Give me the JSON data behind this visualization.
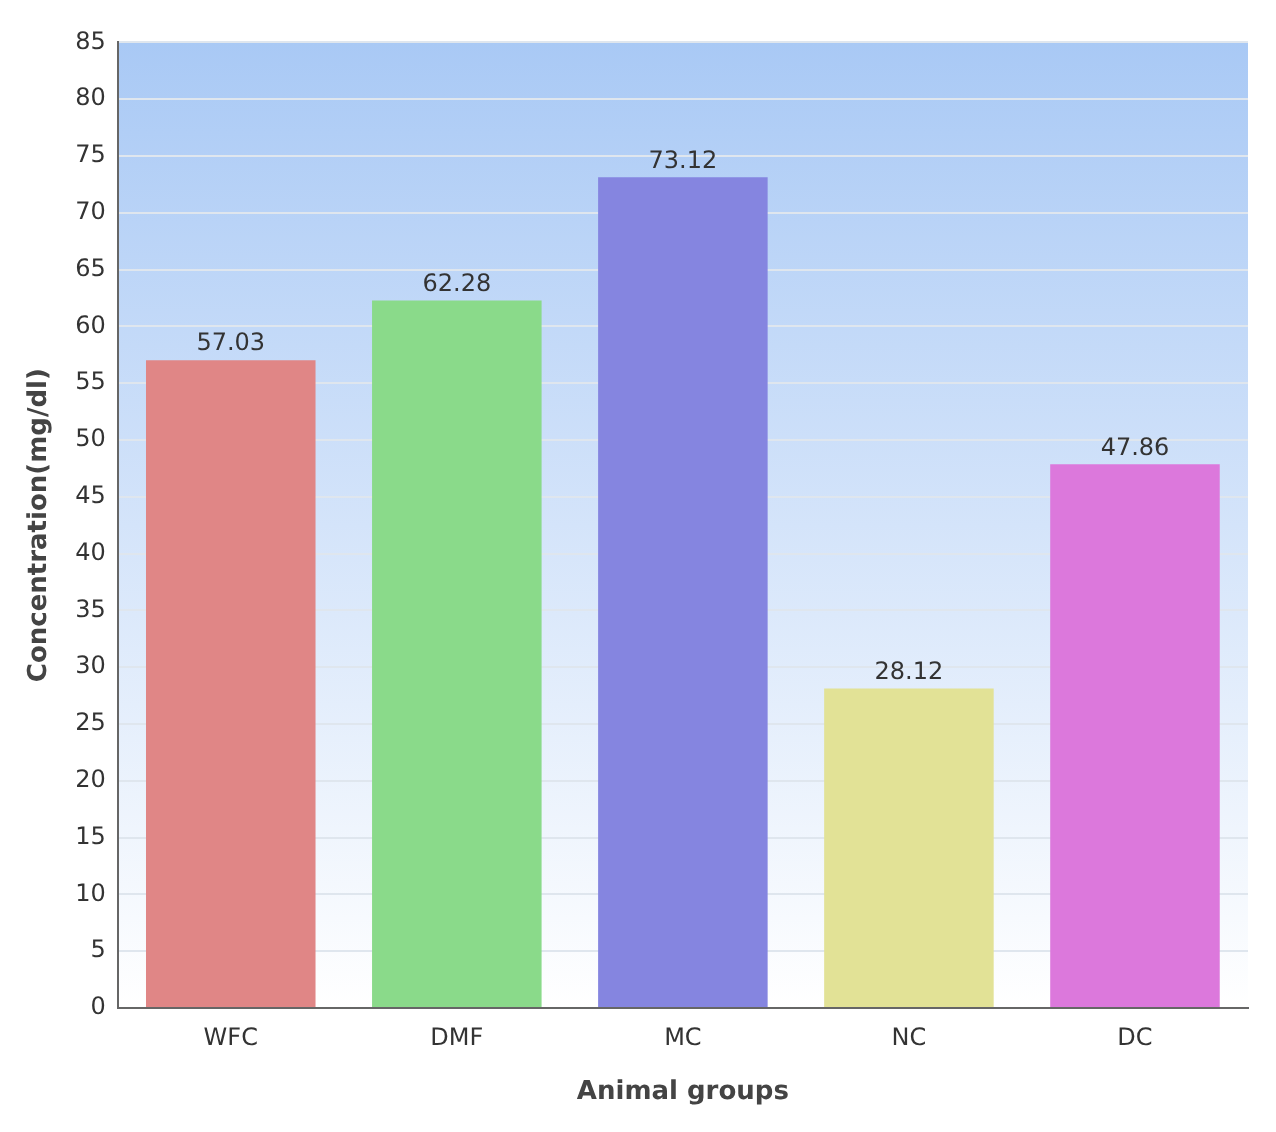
{
  "chart_data": {
    "type": "bar",
    "xlabel": "Animal groups",
    "ylabel": "Concentration(mg/dl)",
    "categories": [
      "WFC",
      "DMF",
      "MC",
      "NC",
      "DC"
    ],
    "values": [
      57.03,
      62.28,
      73.12,
      28.12,
      47.86
    ],
    "colors": [
      "#e08686",
      "#8ada8a",
      "#8585e0",
      "#e2e296",
      "#dc78dc"
    ],
    "ylim": [
      0,
      85
    ],
    "yticks": [
      0,
      5,
      10,
      15,
      20,
      25,
      30,
      35,
      40,
      45,
      50,
      55,
      60,
      65,
      70,
      75,
      80,
      85
    ],
    "grid": "y",
    "data_labels": true
  }
}
